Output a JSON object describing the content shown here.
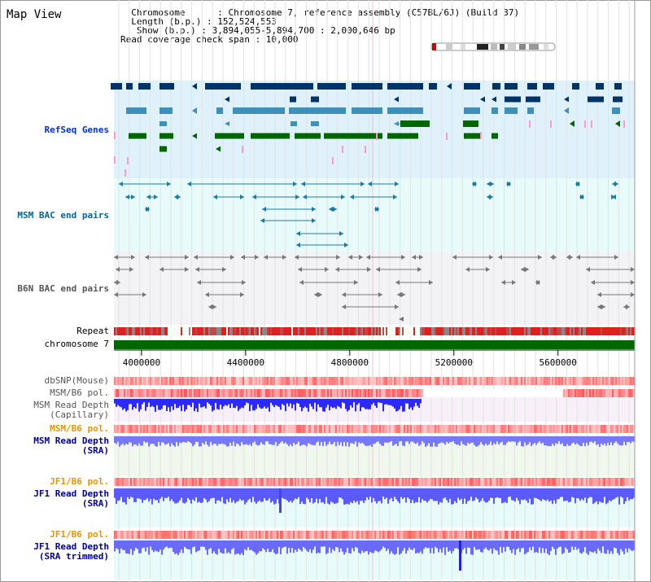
{
  "header": {
    "title": "Map View",
    "info_lines": [
      "  Chromosome      : Chromosome 7, reference assembly (C57BL/6J) (Build 37)",
      "  Length (b.p.) : 152,524,553",
      "   Show (b.p.) : 3,894,055-5,894,700 : 2,000,646 bp",
      "Read coverage check span : 10,000"
    ]
  },
  "tracks": {
    "refseq": "RefSeq Genes",
    "msm_bac": "MSM BAC end pairs",
    "b6n_bac": "B6N BAC end pairs",
    "repeat": "Repeat",
    "chromosome": "chromosome 7",
    "dbsnp": "dbSNP(Mouse)",
    "msm_b6_pol_1": "MSM/B6 pol.",
    "msm_depth_cap_1": "MSM Read Depth",
    "msm_depth_cap_2": "(Capillary)",
    "msm_b6_pol_2": "MSM/B6 pol.",
    "msm_depth_sra_1": "MSM Read Depth",
    "msm_depth_sra_2": "(SRA)",
    "jf1_b6_pol_1": "JF1/B6 pol.",
    "jf1_depth_sra_1": "JF1 Read Depth",
    "jf1_depth_sra_2": "(SRA)",
    "jf1_b6_pol_2": "JF1/B6 pol.",
    "jf1_depth_trim_1": "JF1 Read Depth",
    "jf1_depth_trim_2": "(SRA trimmed)"
  },
  "axis": {
    "ticks": [
      "4000000",
      "4400000",
      "4800000",
      "5200000",
      "5600000"
    ],
    "tick_values": [
      4000000,
      4400000,
      4800000,
      5200000,
      5600000
    ],
    "range": [
      3894055,
      5894700
    ]
  },
  "colors": {
    "gene_dark": "#003366",
    "gene_teal": "#3f8fb6",
    "gene_green": "#006600",
    "gene_pink": "#ff99cc",
    "refseq_bg": "#dff2fb",
    "msm_label": "#006699",
    "b6n_label": "#555555",
    "chromosome_bar": "#006600",
    "depth_blue": "#1a1aff",
    "depth_light": "#6666ff",
    "pol_red": "#ff4444",
    "orange_label": "#e69500",
    "navy_label": "#000099"
  }
}
